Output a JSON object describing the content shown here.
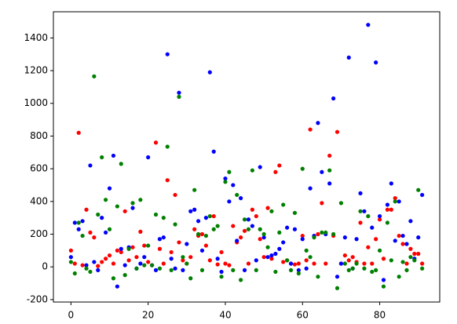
{
  "chart_data": {
    "type": "scatter",
    "x": [
      0,
      1,
      2,
      3,
      4,
      5,
      6,
      7,
      8,
      9,
      10,
      11,
      12,
      13,
      14,
      15,
      16,
      17,
      18,
      19,
      20,
      21,
      22,
      23,
      24,
      25,
      26,
      27,
      28,
      29,
      30,
      31,
      32,
      33,
      34,
      35,
      36,
      37,
      38,
      39,
      40,
      41,
      42,
      43,
      44,
      45,
      46,
      47,
      48,
      49,
      50,
      51,
      52,
      53,
      54,
      55,
      56,
      57,
      58,
      59,
      60,
      61,
      62,
      63,
      64,
      65,
      66,
      67,
      68,
      69,
      70,
      71,
      72,
      73,
      74,
      75,
      76,
      77,
      78,
      79,
      80,
      81,
      82,
      83,
      84,
      85,
      86,
      87,
      88,
      89,
      90,
      91
    ],
    "series": [
      {
        "color": "#ff0000",
        "values": [
          100,
          20,
          820,
          10,
          350,
          210,
          180,
          5,
          30,
          50,
          70,
          20,
          100,
          90,
          340,
          40,
          120,
          60,
          215,
          130,
          30,
          10,
          760,
          110,
          20,
          530,
          90,
          440,
          150,
          40,
          20,
          60,
          230,
          190,
          200,
          130,
          40,
          310,
          15,
          90,
          20,
          10,
          250,
          150,
          180,
          220,
          20,
          350,
          310,
          170,
          60,
          360,
          50,
          580,
          620,
          30,
          40,
          20,
          15,
          20,
          190,
          40,
          840,
          20,
          200,
          390,
          20,
          680,
          190,
          825,
          20,
          70,
          40,
          60,
          30,
          270,
          20,
          120,
          20,
          170,
          290,
          50,
          350,
          350,
          420,
          190,
          140,
          20,
          110,
          80,
          80,
          20
        ]
      },
      {
        "color": "#0000ff",
        "values": [
          60,
          270,
          230,
          280,
          10,
          620,
          30,
          -20,
          300,
          210,
          480,
          680,
          -120,
          110,
          10,
          120,
          360,
          -10,
          20,
          60,
          670,
          10,
          -20,
          170,
          180,
          1300,
          50,
          -10,
          1065,
          -20,
          140,
          340,
          350,
          280,
          100,
          300,
          1190,
          705,
          50,
          -30,
          540,
          400,
          500,
          160,
          420,
          -20,
          290,
          250,
          40,
          610,
          180,
          60,
          70,
          80,
          110,
          150,
          240,
          20,
          230,
          -20,
          170,
          -10,
          480,
          190,
          880,
          580,
          200,
          510,
          1030,
          -60,
          20,
          180,
          1280,
          -10,
          170,
          450,
          340,
          1480,
          240,
          1250,
          310,
          -80,
          380,
          510,
          160,
          400,
          190,
          140,
          280,
          50,
          180,
          440
        ]
      },
      {
        "color": "#008000",
        "values": [
          30,
          -40,
          270,
          190,
          -10,
          -30,
          1165,
          320,
          670,
          410,
          230,
          -70,
          370,
          630,
          -50,
          110,
          390,
          -10,
          410,
          10,
          130,
          10,
          320,
          -10,
          300,
          735,
          -20,
          260,
          1040,
          60,
          20,
          -70,
          470,
          200,
          -20,
          190,
          310,
          230,
          250,
          -60,
          520,
          580,
          -20,
          440,
          -80,
          290,
          230,
          590,
          -20,
          230,
          200,
          120,
          340,
          -30,
          210,
          380,
          40,
          -20,
          330,
          -40,
          600,
          100,
          60,
          180,
          -60,
          210,
          210,
          590,
          200,
          -130,
          390,
          20,
          -20,
          -10,
          20,
          340,
          -10,
          310,
          -30,
          -20,
          100,
          -120,
          270,
          40,
          400,
          -60,
          30,
          -20,
          60,
          40,
          470,
          -10
        ]
      }
    ],
    "xlim": [
      -4.55,
      95.55
    ],
    "ylim": [
      -215,
      1560
    ],
    "xticks": [
      0,
      20,
      40,
      60,
      80
    ],
    "yticks": [
      -200,
      0,
      200,
      400,
      600,
      800,
      1000,
      1200,
      1400
    ]
  }
}
